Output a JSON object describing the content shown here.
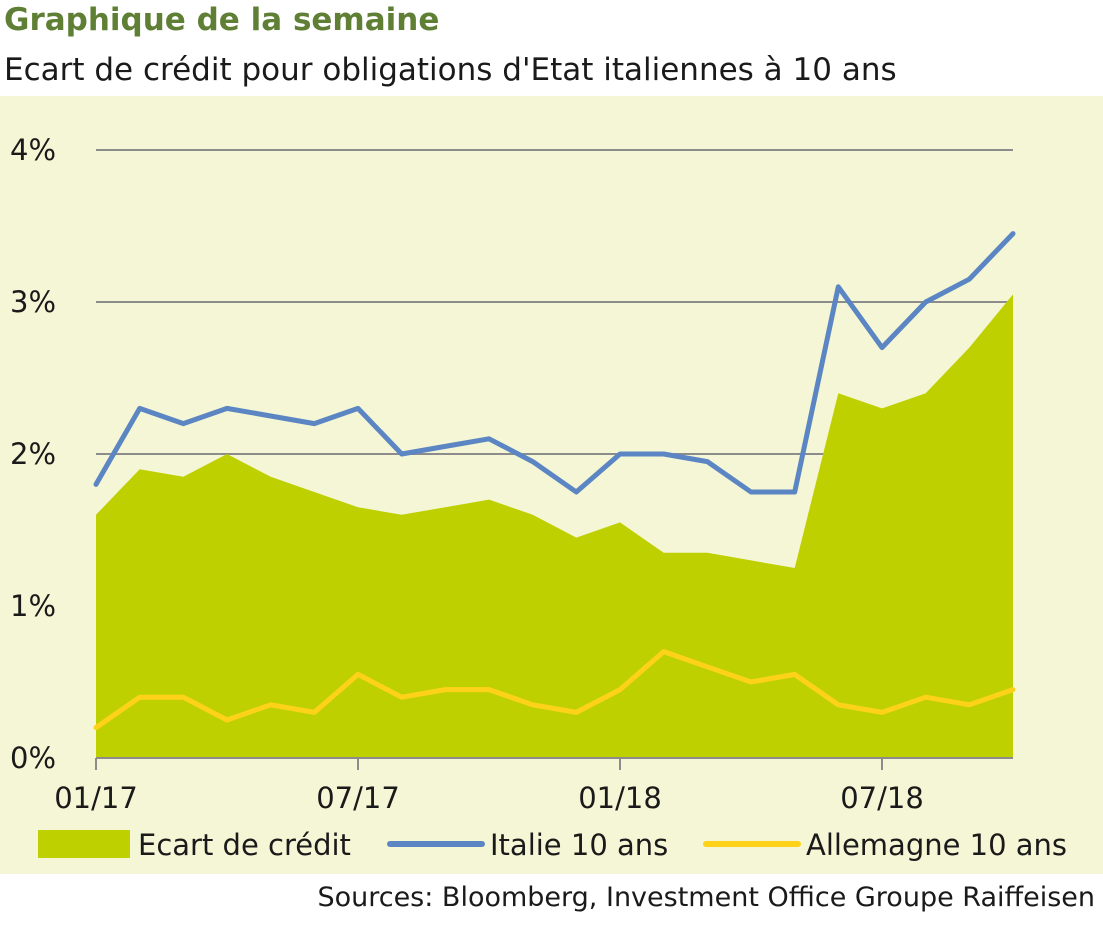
{
  "header": {
    "kicker": "Graphique de la semaine",
    "subtitle": "Ecart de crédit pour obligations d'Etat italiennes à 10 ans"
  },
  "footer": {
    "source": "Sources: Bloomberg, Investment Office Groupe Raiffeisen"
  },
  "colors": {
    "panel_background": "#f4f6d5",
    "spread_fill": "#bfd000",
    "italy_line": "#5b86c3",
    "germany_line": "#ffd21a",
    "gridline": "#8c8c8c",
    "kicker_text": "#5f7f35"
  },
  "chart_data": {
    "type": "area",
    "title": "Ecart de crédit pour obligations d'Etat italiennes à 10 ans",
    "xlabel": "",
    "ylabel": "",
    "y_unit": "%",
    "ylim": [
      0,
      4
    ],
    "yticks": [
      0,
      1,
      2,
      3,
      4
    ],
    "ytick_labels": [
      "0%",
      "1%",
      "2%",
      "3%",
      "4%"
    ],
    "xlim": [
      "2017-01",
      "2018-10"
    ],
    "xticks": [
      "2017-01",
      "2017-07",
      "2018-01",
      "2018-07"
    ],
    "xtick_labels": [
      "01/17",
      "07/17",
      "01/18",
      "07/18"
    ],
    "grid": "horizontal",
    "legend_position": "bottom",
    "series": [
      {
        "name": "Ecart de crédit",
        "style": "area",
        "color": "#bfd000",
        "x": [
          "2017-01",
          "2017-02",
          "2017-03",
          "2017-04",
          "2017-05",
          "2017-06",
          "2017-07",
          "2017-08",
          "2017-09",
          "2017-10",
          "2017-11",
          "2017-12",
          "2018-01",
          "2018-02",
          "2018-03",
          "2018-04",
          "2018-05",
          "2018-06",
          "2018-07",
          "2018-08",
          "2018-09",
          "2018-10"
        ],
        "values": [
          1.6,
          1.9,
          1.85,
          2.0,
          1.85,
          1.75,
          1.65,
          1.6,
          1.65,
          1.7,
          1.6,
          1.45,
          1.55,
          1.35,
          1.35,
          1.3,
          1.25,
          2.4,
          2.3,
          2.4,
          2.7,
          3.05
        ]
      },
      {
        "name": "Italie 10 ans",
        "style": "line",
        "color": "#5b86c3",
        "x": [
          "2017-01",
          "2017-02",
          "2017-03",
          "2017-04",
          "2017-05",
          "2017-06",
          "2017-07",
          "2017-08",
          "2017-09",
          "2017-10",
          "2017-11",
          "2017-12",
          "2018-01",
          "2018-02",
          "2018-03",
          "2018-04",
          "2018-05",
          "2018-06",
          "2018-07",
          "2018-08",
          "2018-09",
          "2018-10"
        ],
        "values": [
          1.8,
          2.3,
          2.2,
          2.3,
          2.25,
          2.2,
          2.3,
          2.0,
          2.05,
          2.1,
          1.95,
          1.75,
          2.0,
          2.0,
          1.95,
          1.75,
          1.75,
          3.1,
          2.7,
          3.0,
          3.15,
          3.45
        ]
      },
      {
        "name": "Allemagne 10 ans",
        "style": "line",
        "color": "#ffd21a",
        "x": [
          "2017-01",
          "2017-02",
          "2017-03",
          "2017-04",
          "2017-05",
          "2017-06",
          "2017-07",
          "2017-08",
          "2017-09",
          "2017-10",
          "2017-11",
          "2017-12",
          "2018-01",
          "2018-02",
          "2018-03",
          "2018-04",
          "2018-05",
          "2018-06",
          "2018-07",
          "2018-08",
          "2018-09",
          "2018-10"
        ],
        "values": [
          0.2,
          0.4,
          0.4,
          0.25,
          0.35,
          0.3,
          0.55,
          0.4,
          0.45,
          0.45,
          0.35,
          0.3,
          0.45,
          0.7,
          0.6,
          0.5,
          0.55,
          0.35,
          0.3,
          0.4,
          0.35,
          0.45
        ]
      }
    ]
  }
}
